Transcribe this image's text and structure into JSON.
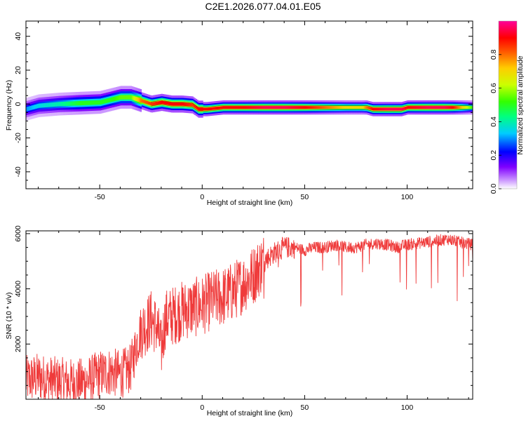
{
  "title": "C2E1.2026.077.04.01.E05",
  "chart_data": [
    {
      "type": "heatmap",
      "panel": "spectrogram",
      "xlabel": "Height of straight line (km)",
      "ylabel": "Frequency (Hz)",
      "xlim": [
        -86,
        132
      ],
      "ylim": [
        -50,
        49
      ],
      "x_ticks": [
        -50,
        0,
        50,
        100
      ],
      "y_ticks": [
        -40,
        -20,
        0,
        20,
        40
      ],
      "ridge": {
        "x": [
          -86,
          -80,
          -70,
          -60,
          -50,
          -45,
          -40,
          -35,
          -30,
          -25,
          -20,
          -15,
          -10,
          -5,
          -2,
          2,
          10,
          20,
          30,
          40,
          50,
          60,
          70,
          78,
          80,
          83,
          90,
          97,
          100,
          110,
          118,
          122,
          132
        ],
        "y": [
          -3,
          -1,
          0,
          0.5,
          1,
          2.5,
          4,
          4,
          2,
          0,
          1,
          0,
          0,
          -0.5,
          -3,
          -3,
          -2,
          -2,
          -2,
          -2,
          -2,
          -2,
          -2,
          -2,
          -2,
          -3,
          -3,
          -3,
          -2,
          -2,
          -2,
          -2,
          -2
        ],
        "amplitude": [
          0.3,
          0.35,
          0.4,
          0.5,
          0.5,
          0.5,
          0.55,
          0.55,
          0.8,
          0.85,
          0.9,
          0.9,
          0.9,
          0.85,
          0.9,
          0.9,
          0.9,
          0.9,
          0.95,
          0.95,
          0.9,
          0.8,
          0.7,
          0.7,
          0.8,
          0.9,
          0.95,
          0.95,
          0.9,
          0.95,
          0.95,
          0.9,
          0.5
        ]
      },
      "colorbar": {
        "label": "Normalized spectral amplitude",
        "range": [
          0,
          1
        ],
        "ticks": [
          "0.0",
          "0.2",
          "0.4",
          "0.6",
          "0.8"
        ]
      }
    },
    {
      "type": "line",
      "panel": "snr",
      "xlabel": "Height of straight line (km)",
      "ylabel": "SNR (10 * v/v)",
      "xlim": [
        -86,
        132
      ],
      "ylim": [
        0,
        6100
      ],
      "x_ticks": [
        -50,
        0,
        50,
        100
      ],
      "y_ticks": [
        2000,
        4000,
        6000
      ],
      "series": [
        {
          "name": "SNR",
          "color": "#ef3b3b",
          "x": [
            -86,
            -80,
            -75,
            -70,
            -65,
            -60,
            -55,
            -50,
            -45,
            -40,
            -35,
            -32,
            -30,
            -27,
            -25,
            -22,
            -20,
            -18,
            -15,
            -10,
            -5,
            0,
            5,
            10,
            15,
            20,
            25,
            30,
            35,
            40,
            45,
            50,
            55,
            60,
            65,
            70,
            75,
            80,
            85,
            90,
            95,
            100,
            105,
            110,
            115,
            120,
            125,
            132
          ],
          "y": [
            700,
            800,
            700,
            650,
            600,
            600,
            700,
            900,
            1000,
            900,
            1100,
            2000,
            2500,
            2700,
            2900,
            2600,
            1800,
            2900,
            3000,
            3200,
            3300,
            3400,
            3600,
            3700,
            3900,
            4200,
            4500,
            5000,
            5300,
            5500,
            5500,
            5400,
            5500,
            5500,
            5600,
            5500,
            5500,
            5600,
            5650,
            5600,
            5500,
            5600,
            5650,
            5700,
            5750,
            5800,
            5700,
            5600
          ]
        }
      ]
    }
  ]
}
